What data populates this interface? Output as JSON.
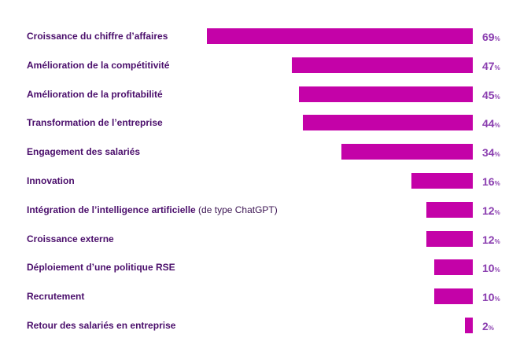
{
  "chart_data": {
    "type": "bar",
    "orientation": "horizontal",
    "bar_color": "#c402a8",
    "value_color": "#8b3fb0",
    "label_color": "#4a0e6b",
    "unit": "%",
    "xlim": [
      0,
      100
    ],
    "grid": false,
    "categories": [
      {
        "label": "Croissance du chiffre d’affaires",
        "note": ""
      },
      {
        "label": "Amélioration de la compétitivité",
        "note": ""
      },
      {
        "label": "Amélioration de la profitabilité",
        "note": ""
      },
      {
        "label": "Transformation de l’entreprise",
        "note": ""
      },
      {
        "label": "Engagement des salariés",
        "note": ""
      },
      {
        "label": "Innovation",
        "note": ""
      },
      {
        "label": "Intégration de l’intelligence artificielle",
        "note": "(de type ChatGPT)"
      },
      {
        "label": "Croissance externe",
        "note": ""
      },
      {
        "label": "Déploiement d’une politique RSE",
        "note": ""
      },
      {
        "label": "Recrutement",
        "note": ""
      },
      {
        "label": "Retour des salariés en entreprise",
        "note": ""
      }
    ],
    "values": [
      69,
      47,
      45,
      44,
      34,
      16,
      12,
      12,
      10,
      10,
      2
    ]
  }
}
